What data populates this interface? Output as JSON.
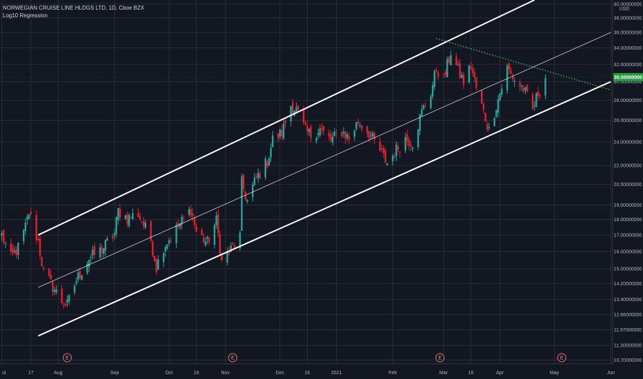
{
  "legend": {
    "title": "NORWEGIAN CRUISE LINE HLDGS LTD, 1D, Cboe BZX",
    "indicator": "Log10 Regression"
  },
  "colors": {
    "background": "#131722",
    "grid": "#2a2e39",
    "up": "#26a69a",
    "down": "#ef1b2b",
    "channel": "#ffffff",
    "trend": "#4caf50",
    "price_tag": "#1e9e3a"
  },
  "chart_data": {
    "type": "candlestick",
    "title": "NORWEGIAN CRUISE LINE HLDGS LTD, 1D, Cboe BZX",
    "indicator": "Log10 Regression",
    "y_scale": "log",
    "y_unit": "USD",
    "ylim": [
      10.55,
      40.6
    ],
    "y_ticks": [
      10.7,
      11.3,
      11.97,
      12.66,
      13.4,
      14.2,
      15.0,
      16.0,
      17.0,
      18.0,
      19.0,
      20.5,
      22.0,
      24.0,
      26.0,
      28.0,
      30.0,
      32.0,
      34.0,
      36.0,
      38.0,
      40.0
    ],
    "y_tick_labels": [
      "10.70000000",
      "11.30000000",
      "11.97000000",
      "12.66000000",
      "13.40000000",
      "14.20000000",
      "15.00000000",
      "16.00000000",
      "17.00000000",
      "18.00000000",
      "19.00000000",
      "20.50000000",
      "22.00000000",
      "24.00000000",
      "26.00000000",
      "28.00000000",
      "30.00000000",
      "32.00000000",
      "34.00000000",
      "36.00000000",
      "38.00000000",
      "40.00000000"
    ],
    "current_price": 30.5,
    "current_price_label": "30.50000000",
    "x_labels": [
      {
        "label": "ul",
        "date": "2020-07-01"
      },
      {
        "label": "17",
        "date": "2020-07-17"
      },
      {
        "label": "Aug",
        "date": "2020-08-01"
      },
      {
        "label": "Sep",
        "date": "2020-09-01"
      },
      {
        "label": "Oct",
        "date": "2020-10-01"
      },
      {
        "label": "16",
        "date": "2020-10-16"
      },
      {
        "label": "Nov",
        "date": "2020-11-01"
      },
      {
        "label": "Dec",
        "date": "2020-12-01"
      },
      {
        "label": "16",
        "date": "2020-12-16"
      },
      {
        "label": "2021",
        "date": "2021-01-01"
      },
      {
        "label": "Feb",
        "date": "2021-02-01"
      },
      {
        "label": "Mar",
        "date": "2021-03-01"
      },
      {
        "label": "16",
        "date": "2021-03-16"
      },
      {
        "label": "Apr",
        "date": "2021-04-01"
      },
      {
        "label": "May",
        "date": "2021-05-01"
      },
      {
        "label": "Jun",
        "date": "2021-06-01"
      }
    ],
    "earnings_markers": [
      {
        "label": "E",
        "date": "2020-08-06"
      },
      {
        "label": "E",
        "date": "2020-11-05"
      },
      {
        "label": "E",
        "date": "2021-02-27"
      },
      {
        "label": "E",
        "date": "2021-05-05"
      }
    ],
    "regression_channel": {
      "start_date": "2020-07-21",
      "upper_start": 17.0,
      "mid_start": 14.0,
      "lower_start": 11.7,
      "mid_end_date": "2021-06-01",
      "mid_end": 36.0,
      "upper_end_date": "2021-04-20",
      "upper_end": 40.6,
      "lower_end_date": "2021-06-01",
      "lower_end": 30.0
    },
    "trend_line": {
      "start_date": "2021-02-25",
      "start": 35.2,
      "end_date": "2021-06-01",
      "end": 29.1
    },
    "key_points": [
      {
        "date": "2020-07-01",
        "price": 17.0
      },
      {
        "date": "2020-07-06",
        "price": 15.6
      },
      {
        "date": "2020-07-10",
        "price": 16.2
      },
      {
        "date": "2020-07-14",
        "price": 17.5
      },
      {
        "date": "2020-07-16",
        "price": 18.5
      },
      {
        "date": "2020-07-21",
        "price": 16.6
      },
      {
        "date": "2020-07-24",
        "price": 14.8
      },
      {
        "date": "2020-07-28",
        "price": 14.2
      },
      {
        "date": "2020-08-03",
        "price": 13.3
      },
      {
        "date": "2020-08-06",
        "price": 13.1
      },
      {
        "date": "2020-08-11",
        "price": 14.4
      },
      {
        "date": "2020-08-18",
        "price": 15.6
      },
      {
        "date": "2020-08-25",
        "price": 16.1
      },
      {
        "date": "2020-09-01",
        "price": 17.1
      },
      {
        "date": "2020-09-03",
        "price": 18.6
      },
      {
        "date": "2020-09-08",
        "price": 18.1
      },
      {
        "date": "2020-09-14",
        "price": 18.4
      },
      {
        "date": "2020-09-21",
        "price": 16.7
      },
      {
        "date": "2020-09-24",
        "price": 15.1
      },
      {
        "date": "2020-09-28",
        "price": 16.3
      },
      {
        "date": "2020-10-02",
        "price": 16.9
      },
      {
        "date": "2020-10-07",
        "price": 17.7
      },
      {
        "date": "2020-10-13",
        "price": 18.7
      },
      {
        "date": "2020-10-16",
        "price": 17.2
      },
      {
        "date": "2020-10-22",
        "price": 16.5
      },
      {
        "date": "2020-10-27",
        "price": 17.9
      },
      {
        "date": "2020-10-30",
        "price": 15.4
      },
      {
        "date": "2020-11-04",
        "price": 16.1
      },
      {
        "date": "2020-11-09",
        "price": 16.9
      },
      {
        "date": "2020-11-10",
        "price": 20.6
      },
      {
        "date": "2020-11-13",
        "price": 19.3
      },
      {
        "date": "2020-11-18",
        "price": 21.0
      },
      {
        "date": "2020-11-24",
        "price": 22.3
      },
      {
        "date": "2020-11-27",
        "price": 24.2
      },
      {
        "date": "2020-12-02",
        "price": 24.8
      },
      {
        "date": "2020-12-07",
        "price": 27.5
      },
      {
        "date": "2020-12-10",
        "price": 27.0
      },
      {
        "date": "2020-12-15",
        "price": 25.0
      },
      {
        "date": "2020-12-18",
        "price": 24.6
      },
      {
        "date": "2020-12-23",
        "price": 25.2
      },
      {
        "date": "2020-12-29",
        "price": 24.1
      },
      {
        "date": "2021-01-04",
        "price": 25.0
      },
      {
        "date": "2021-01-08",
        "price": 24.3
      },
      {
        "date": "2021-01-13",
        "price": 25.9
      },
      {
        "date": "2021-01-19",
        "price": 24.8
      },
      {
        "date": "2021-01-25",
        "price": 23.2
      },
      {
        "date": "2021-01-29",
        "price": 22.2
      },
      {
        "date": "2021-02-03",
        "price": 23.3
      },
      {
        "date": "2021-02-08",
        "price": 24.3
      },
      {
        "date": "2021-02-12",
        "price": 24.0
      },
      {
        "date": "2021-02-17",
        "price": 26.8
      },
      {
        "date": "2021-02-22",
        "price": 28.8
      },
      {
        "date": "2021-02-25",
        "price": 31.5
      },
      {
        "date": "2021-03-01",
        "price": 30.2
      },
      {
        "date": "2021-03-05",
        "price": 33.5
      },
      {
        "date": "2021-03-09",
        "price": 31.2
      },
      {
        "date": "2021-03-12",
        "price": 30.0
      },
      {
        "date": "2021-03-16",
        "price": 31.8
      },
      {
        "date": "2021-03-19",
        "price": 29.3
      },
      {
        "date": "2021-03-23",
        "price": 26.8
      },
      {
        "date": "2021-03-26",
        "price": 25.0
      },
      {
        "date": "2021-03-30",
        "price": 27.5
      },
      {
        "date": "2021-04-05",
        "price": 31.5
      },
      {
        "date": "2021-04-09",
        "price": 30.2
      },
      {
        "date": "2021-04-14",
        "price": 29.2
      },
      {
        "date": "2021-04-19",
        "price": 27.0
      },
      {
        "date": "2021-04-22",
        "price": 28.8
      },
      {
        "date": "2021-04-26",
        "price": 30.5
      }
    ]
  }
}
